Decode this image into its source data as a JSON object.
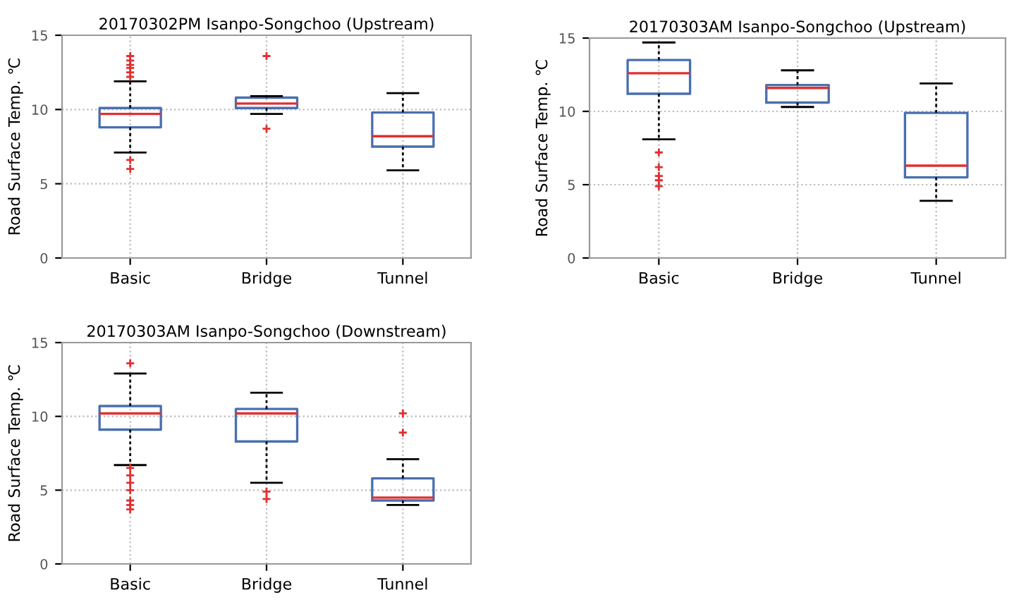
{
  "chart_data": [
    {
      "type": "box",
      "title": "20170302PM Isanpo-Songchoo (Upstream)",
      "ylabel": "Road Surface Temp. ℃",
      "categories": [
        "Basic",
        "Bridge",
        "Tunnel"
      ],
      "ylim": [
        0,
        15
      ],
      "yticks": [
        0,
        5,
        10,
        15
      ],
      "grid": true,
      "color": "#4a6fb0",
      "boxes": [
        {
          "low": 7.1,
          "q1": 8.8,
          "median": 9.7,
          "q3": 10.1,
          "high": 11.9,
          "outliers": [
            12.2,
            12.5,
            12.8,
            13.0,
            13.3,
            13.6,
            6.6,
            6.0
          ]
        },
        {
          "low": 9.7,
          "q1": 10.1,
          "median": 10.4,
          "q3": 10.8,
          "high": 10.9,
          "outliers": [
            13.6,
            8.7
          ]
        },
        {
          "low": 5.9,
          "q1": 7.5,
          "median": 8.2,
          "q3": 9.8,
          "high": 11.1
        }
      ]
    },
    {
      "type": "box",
      "title": "20170303AM Isanpo-Songchoo (Upstream)",
      "ylabel": "Road Surface Temp. ℃",
      "categories": [
        "Basic",
        "Bridge",
        "Tunnel"
      ],
      "ylim": [
        0,
        15
      ],
      "yticks": [
        0,
        5,
        10,
        15
      ],
      "grid": true,
      "color": "#4a6fb0",
      "boxes": [
        {
          "low": 8.1,
          "q1": 11.2,
          "median": 12.6,
          "q3": 13.5,
          "high": 14.7,
          "outliers": [
            7.2,
            6.2,
            5.6,
            5.3,
            4.9
          ]
        },
        {
          "low": 10.3,
          "q1": 10.6,
          "median": 11.6,
          "q3": 11.8,
          "high": 12.8
        },
        {
          "low": 3.9,
          "q1": 5.5,
          "median": 6.3,
          "q3": 9.9,
          "high": 11.9
        }
      ]
    },
    {
      "type": "box",
      "title": "20170303AM Isanpo-Songchoo (Downstream)",
      "ylabel": "Road Surface Temp. ℃",
      "categories": [
        "Basic",
        "Bridge",
        "Tunnel"
      ],
      "ylim": [
        0,
        15
      ],
      "yticks": [
        0,
        5,
        10,
        15
      ],
      "grid": true,
      "color": "#4a6fb0",
      "boxes": [
        {
          "low": 6.7,
          "q1": 9.1,
          "median": 10.2,
          "q3": 10.7,
          "high": 12.9,
          "outliers": [
            13.6,
            6.5,
            6.0,
            5.5,
            5.0,
            4.3,
            4.0,
            3.7
          ]
        },
        {
          "low": 5.5,
          "q1": 8.3,
          "median": 10.2,
          "q3": 10.5,
          "high": 11.6,
          "outliers": [
            4.9,
            4.4
          ]
        },
        {
          "low": 4.0,
          "q1": 4.3,
          "median": 4.5,
          "q3": 5.8,
          "high": 7.1,
          "outliers": [
            10.2,
            8.9
          ]
        }
      ]
    }
  ]
}
